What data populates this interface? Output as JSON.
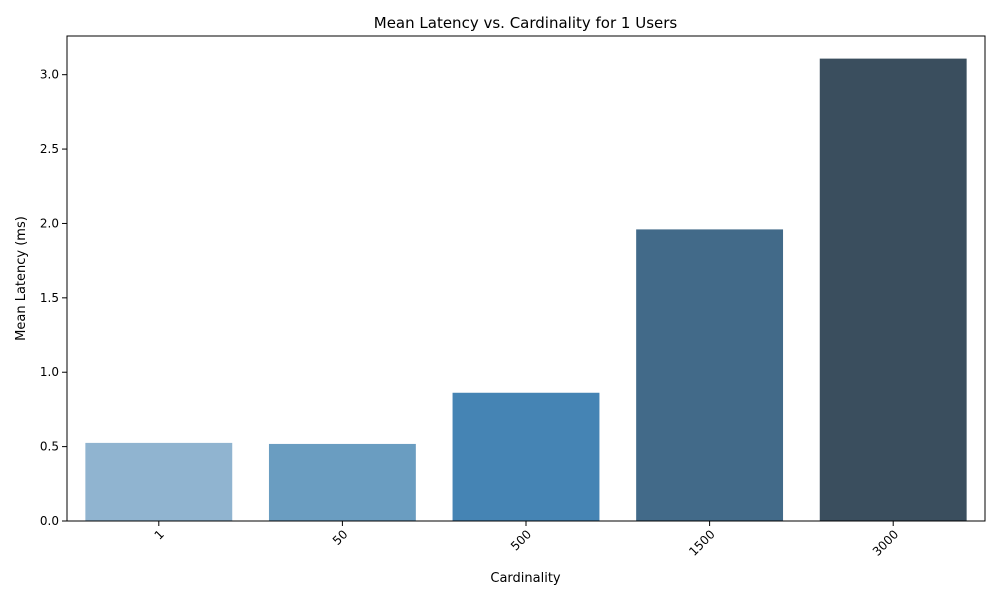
{
  "chart_data": {
    "type": "bar",
    "title": "Mean Latency vs. Cardinality for 1 Users",
    "xlabel": "Cardinality",
    "ylabel": "Mean Latency (ms)",
    "categories": [
      "1",
      "50",
      "500",
      "1500",
      "3000"
    ],
    "values": [
      0.525,
      0.518,
      0.862,
      1.96,
      3.108
    ],
    "ylim": [
      0,
      3.26
    ],
    "yticks": [
      "0.0",
      "0.5",
      "1.0",
      "1.5",
      "2.0",
      "2.5",
      "3.0"
    ],
    "colors": [
      "#90b4d0",
      "#6a9dc1",
      "#4584b4",
      "#426a89",
      "#3a4e5e"
    ],
    "grid": false,
    "x_tick_rotation_deg": 45
  }
}
